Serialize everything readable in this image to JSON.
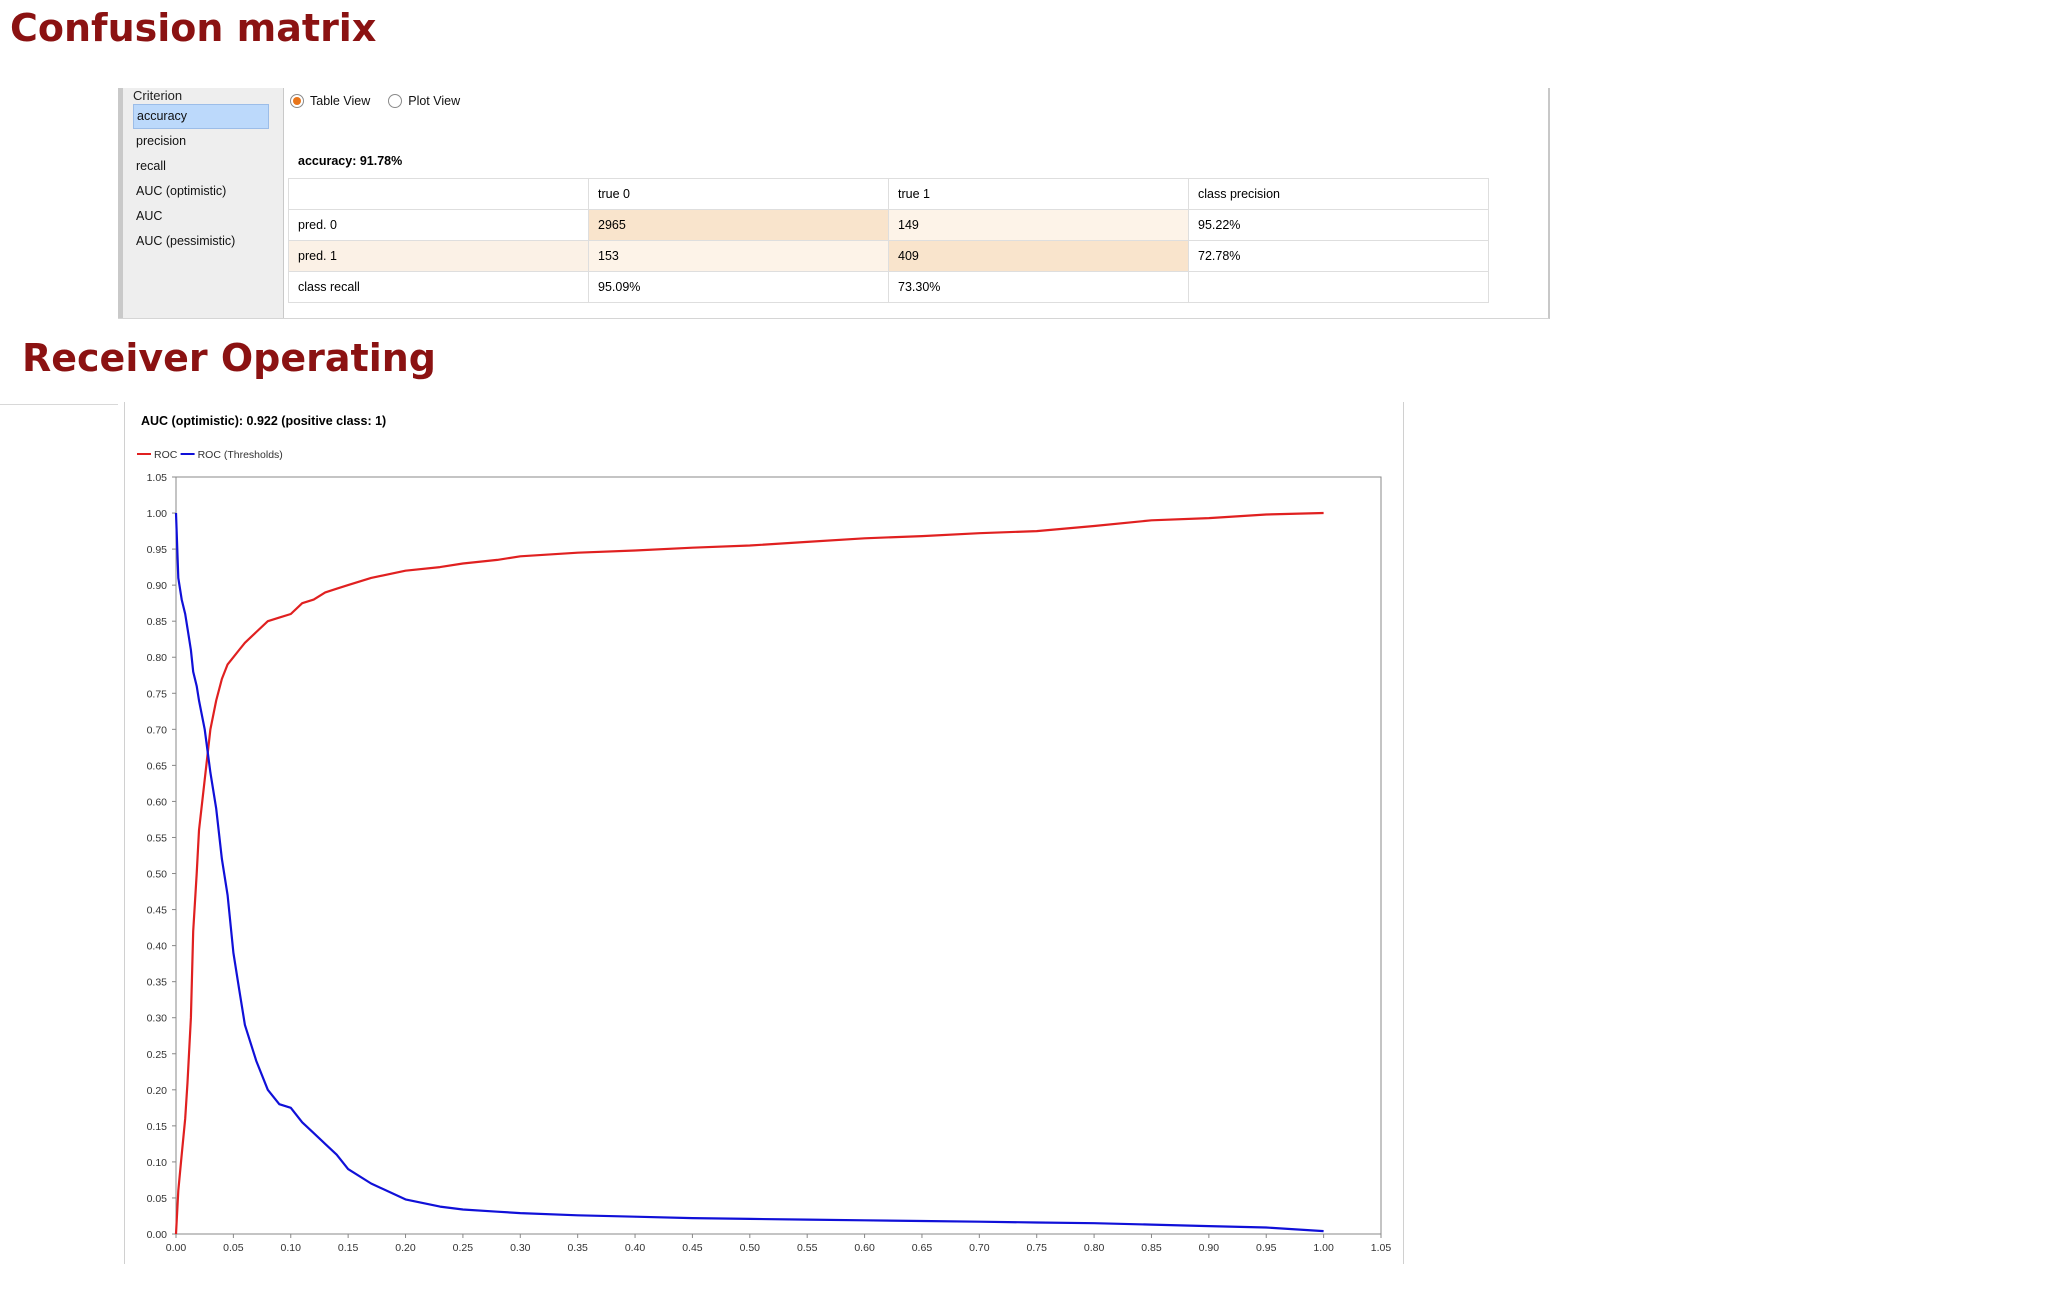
{
  "headings": {
    "confusion": "Confusion matrix",
    "roc": "Receiver Operating"
  },
  "criterion": {
    "title": "Criterion",
    "items": [
      "accuracy",
      "precision",
      "recall",
      "AUC (optimistic)",
      "AUC",
      "AUC (pessimistic)"
    ],
    "selected": "accuracy"
  },
  "views": {
    "table": "Table View",
    "plot": "Plot View",
    "selected": "Table View"
  },
  "accuracy_text": "accuracy: 91.78%",
  "confusion_table": {
    "header": [
      "",
      "true 0",
      "true 1",
      "class precision"
    ],
    "rows": [
      [
        "pred. 0",
        "2965",
        "149",
        "95.22%"
      ],
      [
        "pred. 1",
        "153",
        "409",
        "72.78%"
      ],
      [
        "class recall",
        "95.09%",
        "73.30%",
        ""
      ]
    ]
  },
  "roc_title": "AUC (optimistic): 0.922 (positive class: 1)",
  "colors": {
    "roc": "#e02020",
    "thresholds": "#1010d8",
    "heading": "#8b1212"
  },
  "chart_data": {
    "type": "line",
    "title": "AUC (optimistic): 0.922 (positive class: 1)",
    "xlabel": "",
    "ylabel": "",
    "xlim": [
      0,
      1.05
    ],
    "ylim": [
      0,
      1.05
    ],
    "grid": true,
    "legend": "top-left",
    "xticks": [
      "0.00",
      "0.05",
      "0.10",
      "0.15",
      "0.20",
      "0.25",
      "0.30",
      "0.35",
      "0.40",
      "0.45",
      "0.50",
      "0.55",
      "0.60",
      "0.65",
      "0.70",
      "0.75",
      "0.80",
      "0.85",
      "0.90",
      "0.95",
      "1.00",
      "1.05"
    ],
    "yticks": [
      "0.00",
      "0.05",
      "0.10",
      "0.15",
      "0.20",
      "0.25",
      "0.30",
      "0.35",
      "0.40",
      "0.45",
      "0.50",
      "0.55",
      "0.60",
      "0.65",
      "0.70",
      "0.75",
      "0.80",
      "0.85",
      "0.90",
      "0.95",
      "1.00",
      "1.05"
    ],
    "series": [
      {
        "name": "ROC",
        "color": "#e02020",
        "x": [
          0.0,
          0.002,
          0.005,
          0.008,
          0.01,
          0.013,
          0.015,
          0.018,
          0.02,
          0.025,
          0.03,
          0.035,
          0.04,
          0.045,
          0.05,
          0.055,
          0.06,
          0.07,
          0.08,
          0.09,
          0.1,
          0.11,
          0.12,
          0.13,
          0.14,
          0.15,
          0.17,
          0.2,
          0.23,
          0.25,
          0.28,
          0.3,
          0.35,
          0.4,
          0.45,
          0.5,
          0.55,
          0.6,
          0.65,
          0.7,
          0.75,
          0.8,
          0.85,
          0.9,
          0.95,
          1.0
        ],
        "y": [
          0.0,
          0.06,
          0.11,
          0.16,
          0.21,
          0.3,
          0.42,
          0.5,
          0.56,
          0.63,
          0.7,
          0.74,
          0.77,
          0.79,
          0.8,
          0.81,
          0.82,
          0.835,
          0.85,
          0.855,
          0.86,
          0.875,
          0.88,
          0.89,
          0.895,
          0.9,
          0.91,
          0.92,
          0.925,
          0.93,
          0.935,
          0.94,
          0.945,
          0.948,
          0.952,
          0.955,
          0.96,
          0.965,
          0.968,
          0.972,
          0.975,
          0.982,
          0.99,
          0.993,
          0.998,
          1.0
        ]
      },
      {
        "name": "ROC (Thresholds)",
        "color": "#1010d8",
        "x": [
          0.0,
          0.002,
          0.005,
          0.008,
          0.01,
          0.013,
          0.015,
          0.018,
          0.02,
          0.025,
          0.03,
          0.035,
          0.04,
          0.045,
          0.05,
          0.055,
          0.06,
          0.07,
          0.08,
          0.09,
          0.1,
          0.11,
          0.12,
          0.13,
          0.14,
          0.15,
          0.17,
          0.2,
          0.23,
          0.25,
          0.28,
          0.3,
          0.35,
          0.4,
          0.45,
          0.5,
          0.55,
          0.6,
          0.65,
          0.7,
          0.75,
          0.8,
          0.85,
          0.9,
          0.95,
          1.0
        ],
        "y": [
          1.0,
          0.91,
          0.88,
          0.86,
          0.84,
          0.81,
          0.78,
          0.76,
          0.74,
          0.7,
          0.64,
          0.59,
          0.52,
          0.47,
          0.39,
          0.34,
          0.29,
          0.24,
          0.2,
          0.18,
          0.175,
          0.155,
          0.14,
          0.125,
          0.11,
          0.09,
          0.07,
          0.048,
          0.038,
          0.034,
          0.031,
          0.029,
          0.026,
          0.024,
          0.022,
          0.021,
          0.02,
          0.019,
          0.018,
          0.017,
          0.016,
          0.015,
          0.013,
          0.011,
          0.009,
          0.004
        ]
      }
    ]
  }
}
